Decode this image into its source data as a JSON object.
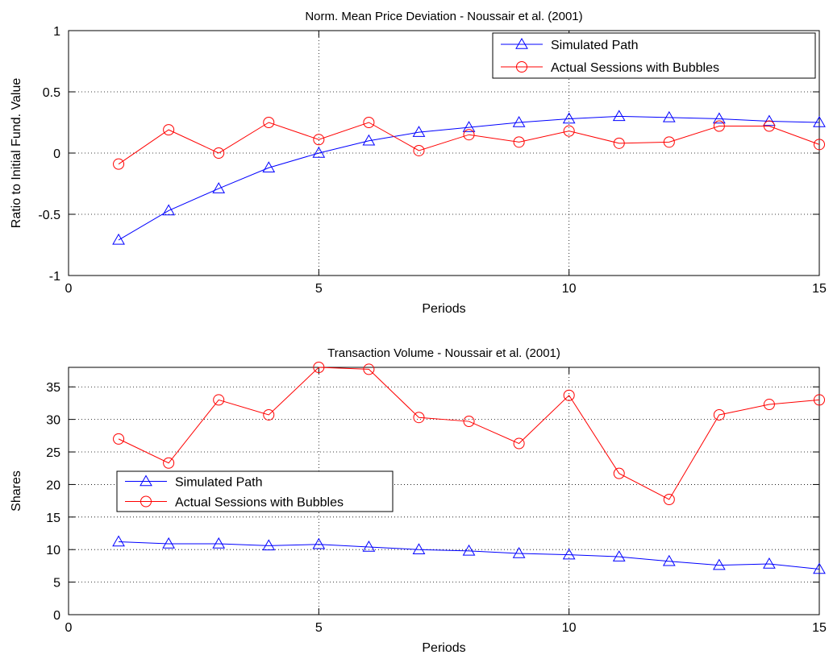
{
  "chart_data": [
    {
      "type": "line",
      "title": "Norm. Mean Price Deviation - Noussair et al. (2001)",
      "xlabel": "Periods",
      "ylabel": "Ratio to Initial Fund. Value",
      "xlim": [
        0,
        15
      ],
      "ylim": [
        -1,
        1
      ],
      "xticks": [
        "0",
        "5",
        "10",
        "15"
      ],
      "yticks": [
        "-1",
        "-0.5",
        "0",
        "0.5",
        "1"
      ],
      "grid": true,
      "legend_position": "top-right",
      "x": [
        1,
        2,
        3,
        4,
        5,
        6,
        7,
        8,
        9,
        10,
        11,
        12,
        13,
        14,
        15
      ],
      "series": [
        {
          "name": "Simulated Path",
          "color": "#0000ff",
          "marker": "triangle",
          "values": [
            -0.71,
            -0.47,
            -0.29,
            -0.12,
            0.0,
            0.1,
            0.17,
            0.21,
            0.25,
            0.28,
            0.3,
            0.29,
            0.28,
            0.26,
            0.25
          ]
        },
        {
          "name": "Actual Sessions with Bubbles",
          "color": "#ff0000",
          "marker": "circle",
          "values": [
            -0.09,
            0.19,
            0.0,
            0.25,
            0.11,
            0.25,
            0.02,
            0.15,
            0.09,
            0.18,
            0.08,
            0.09,
            0.22,
            0.22,
            0.07
          ]
        }
      ]
    },
    {
      "type": "line",
      "title": "Transaction Volume - Noussair et al. (2001)",
      "xlabel": "Periods",
      "ylabel": "Shares",
      "xlim": [
        0,
        15
      ],
      "ylim": [
        0,
        38
      ],
      "xticks": [
        "0",
        "5",
        "10",
        "15"
      ],
      "yticks": [
        "0",
        "5",
        "10",
        "15",
        "20",
        "25",
        "30",
        "35"
      ],
      "grid": true,
      "legend_position": "middle-left",
      "x": [
        1,
        2,
        3,
        4,
        5,
        6,
        7,
        8,
        9,
        10,
        11,
        12,
        13,
        14,
        15
      ],
      "series": [
        {
          "name": "Simulated Path",
          "color": "#0000ff",
          "marker": "triangle",
          "values": [
            11.2,
            10.9,
            10.9,
            10.6,
            10.8,
            10.4,
            10.0,
            9.8,
            9.4,
            9.2,
            8.9,
            8.2,
            7.6,
            7.8,
            7.0
          ]
        },
        {
          "name": "Actual Sessions with Bubbles",
          "color": "#ff0000",
          "marker": "circle",
          "values": [
            27.0,
            23.3,
            33.0,
            30.7,
            38.0,
            37.7,
            30.3,
            29.7,
            26.3,
            33.7,
            21.7,
            17.7,
            30.7,
            32.3,
            33.0
          ]
        }
      ]
    }
  ]
}
